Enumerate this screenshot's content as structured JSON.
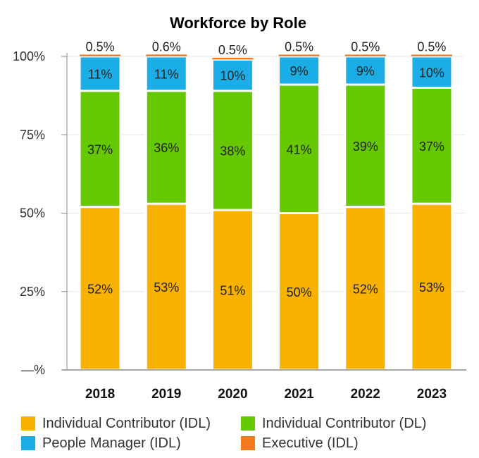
{
  "chart_data": {
    "type": "bar",
    "stacked": true,
    "title": "Workforce by Role",
    "xlabel": "",
    "ylabel": "",
    "ylim": [
      0,
      100
    ],
    "yticks": [
      0,
      25,
      50,
      75,
      100
    ],
    "ytick_labels": [
      "—%",
      "25%",
      "50%",
      "75%",
      "100%"
    ],
    "categories": [
      "2018",
      "2019",
      "2020",
      "2021",
      "2022",
      "2023"
    ],
    "series": [
      {
        "name": "Individual Contributor (IDL)",
        "color": "#F9B200",
        "values": [
          52,
          53,
          51,
          50,
          52,
          53
        ],
        "labels": [
          "52%",
          "53%",
          "51%",
          "50%",
          "52%",
          "53%"
        ]
      },
      {
        "name": "Individual Contributor (DL)",
        "color": "#66C800",
        "values": [
          37,
          36,
          38,
          41,
          39,
          37
        ],
        "labels": [
          "37%",
          "36%",
          "38%",
          "41%",
          "39%",
          "37%"
        ]
      },
      {
        "name": "People Manager (IDL)",
        "color": "#1BAEE6",
        "values": [
          11,
          11,
          10,
          9,
          9,
          10
        ],
        "labels": [
          "11%",
          "11%",
          "10%",
          "9%",
          "9%",
          "10%"
        ]
      },
      {
        "name": "Executive (IDL)",
        "color": "#F47A1F",
        "values": [
          0.5,
          0.6,
          0.5,
          0.5,
          0.5,
          0.5
        ],
        "labels": [
          "0.5%",
          "0.6%",
          "0.5%",
          "0.5%",
          "0.5%",
          "0.5%"
        ]
      }
    ],
    "grid": true,
    "legend_position": "bottom"
  },
  "legend": {
    "items": [
      {
        "label": "Individual Contributor (IDL)",
        "color": "#F9B200"
      },
      {
        "label": "Individual Contributor (DL)",
        "color": "#66C800"
      },
      {
        "label": "People Manager (IDL)",
        "color": "#1BAEE6"
      },
      {
        "label": "Executive (IDL)",
        "color": "#F47A1F"
      }
    ]
  }
}
